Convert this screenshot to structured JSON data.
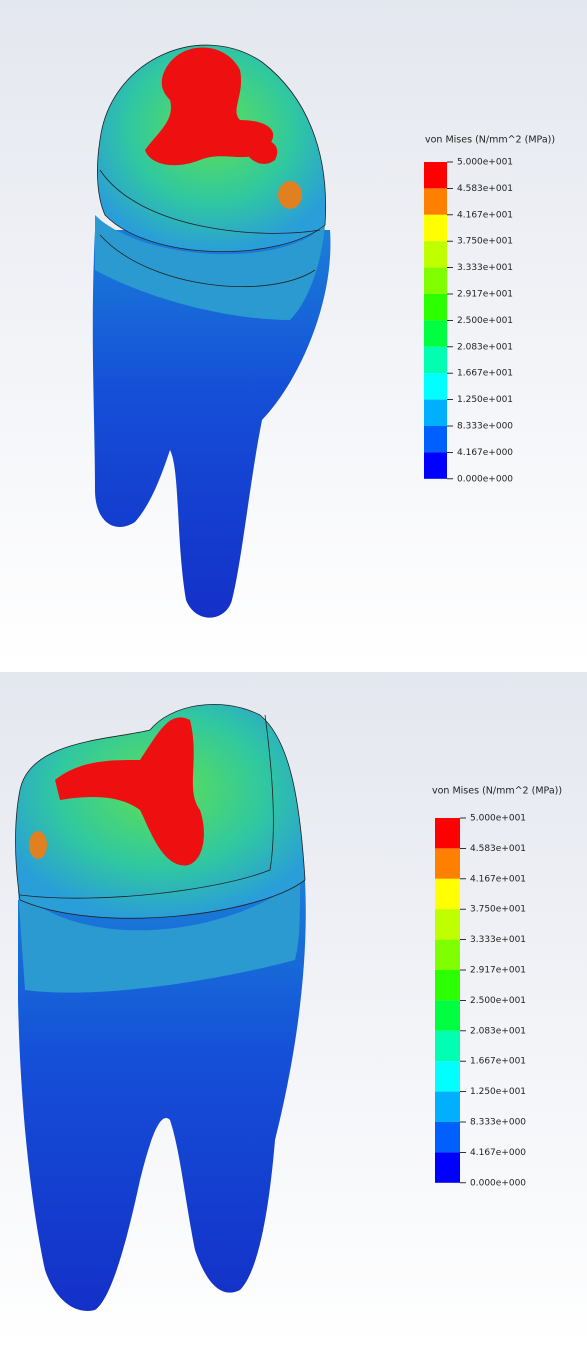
{
  "panels": [
    {
      "legend": {
        "title": "von Mises (N/mm^2 (MPa))",
        "labels": [
          "5.000e+001",
          "4.583e+001",
          "4.167e+001",
          "3.750e+001",
          "3.333e+001",
          "2.917e+001",
          "2.500e+001",
          "2.083e+001",
          "1.667e+001",
          "1.250e+001",
          "8.333e+000",
          "4.167e+000",
          "0.000e+000"
        ],
        "colors": [
          "#ff0000",
          "#ff7f00",
          "#ffff00",
          "#bfff00",
          "#7fff00",
          "#2cff00",
          "#00ff40",
          "#00ffb0",
          "#00ffff",
          "#00b0ff",
          "#0060ff",
          "#0000ff"
        ]
      }
    },
    {
      "legend": {
        "title": "von Mises (N/mm^2 (MPa))",
        "labels": [
          "5.000e+001",
          "4.583e+001",
          "4.167e+001",
          "3.750e+001",
          "3.333e+001",
          "2.917e+001",
          "2.500e+001",
          "2.083e+001",
          "1.667e+001",
          "1.250e+001",
          "8.333e+000",
          "4.167e+000",
          "0.000e+000"
        ],
        "colors": [
          "#ff0000",
          "#ff7f00",
          "#ffff00",
          "#bfff00",
          "#7fff00",
          "#2cff00",
          "#00ff40",
          "#00ffb0",
          "#00ffff",
          "#00b0ff",
          "#0060ff",
          "#0000ff"
        ]
      }
    }
  ]
}
